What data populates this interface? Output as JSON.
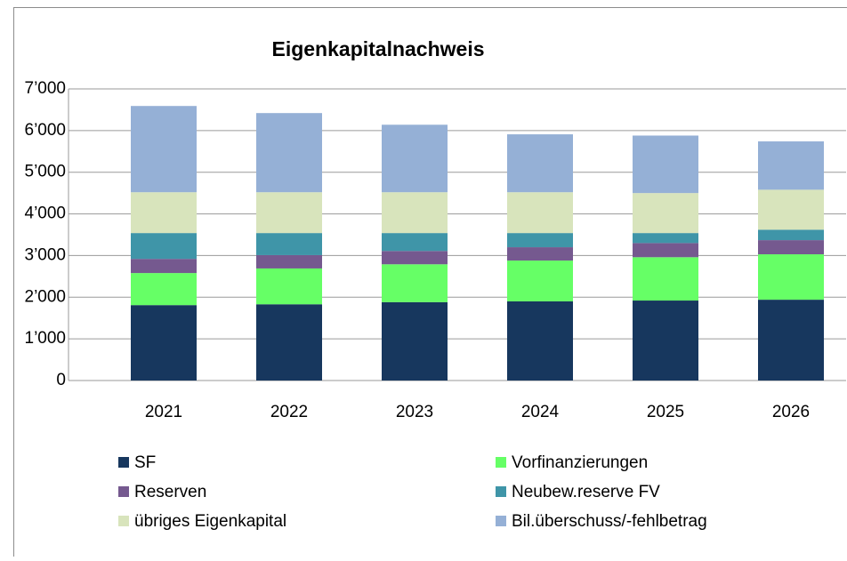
{
  "chart_data": {
    "type": "stacked_bar",
    "title": "Eigenkapitalnachweis",
    "categories": [
      "2021",
      "2022",
      "2023",
      "2024",
      "2025",
      "2026"
    ],
    "series": [
      {
        "name": "SF",
        "color": "#17375e",
        "values": [
          1810,
          1830,
          1880,
          1900,
          1920,
          1940
        ]
      },
      {
        "name": "Vorfinanzierungen",
        "color": "#66ff66",
        "values": [
          770,
          860,
          910,
          980,
          1040,
          1090
        ]
      },
      {
        "name": "Reserven",
        "color": "#75598f",
        "values": [
          340,
          320,
          320,
          320,
          340,
          340
        ]
      },
      {
        "name": "Neubew.reserve FV",
        "color": "#3f95a8",
        "values": [
          620,
          530,
          430,
          340,
          240,
          250
        ]
      },
      {
        "name": "übriges Eigenkapital",
        "color": "#d8e4bc",
        "values": [
          980,
          980,
          980,
          980,
          960,
          960
        ]
      },
      {
        "name": "Bil.überschuss/-fehlbetrag",
        "color": "#95b0d6",
        "values": [
          2070,
          1900,
          1620,
          1390,
          1380,
          1160
        ]
      }
    ],
    "ylim": [
      0,
      7000
    ],
    "yticks": [
      0,
      {
        "value": 1000,
        "label": "1’000"
      },
      {
        "value": 2000,
        "label": "2’000"
      },
      {
        "value": 3000,
        "label": "3’000"
      },
      {
        "value": 4000,
        "label": "4’000"
      },
      {
        "value": 5000,
        "label": "5’000"
      },
      {
        "value": 6000,
        "label": "6’000"
      },
      {
        "value": 7000,
        "label": "7’000"
      }
    ],
    "grid": true
  }
}
